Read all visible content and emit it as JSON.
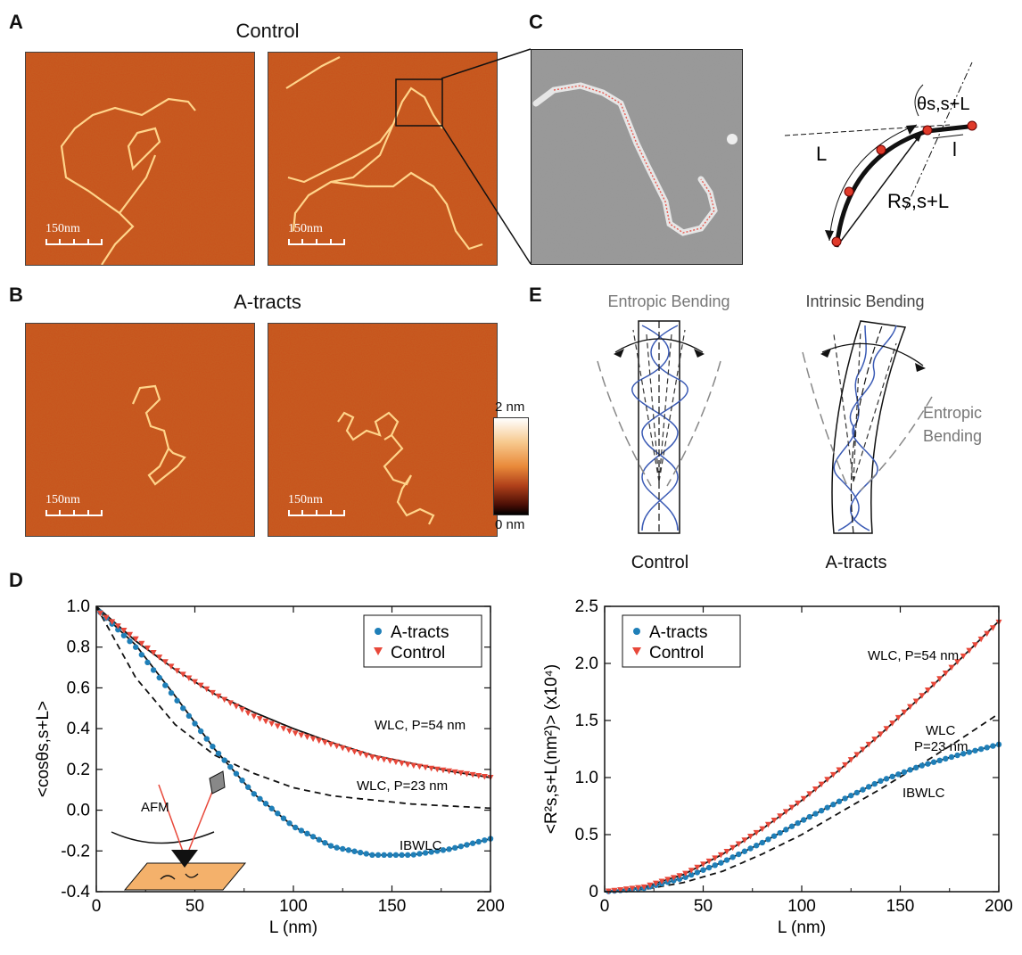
{
  "panels": {
    "a": "A",
    "b": "B",
    "c": "C",
    "d": "D",
    "e": "E"
  },
  "afm": {
    "control_title": "Control",
    "atracts_title": "A-tracts",
    "scale_label": "150nm",
    "colorbar_max": "2 nm",
    "colorbar_min": "0 nm"
  },
  "schematic": {
    "theta_label": "θs,s+L",
    "L_label": "L",
    "R_label": "Rs,s+L",
    "l_label": "l"
  },
  "bending": {
    "entropic_title": "Entropic Bending",
    "intrinsic_title": "Intrinsic Bending",
    "entropic_side_line1": "Entropic",
    "entropic_side_line2": "Bending",
    "control_caption": "Control",
    "atracts_caption": "A-tracts"
  },
  "colors": {
    "atracts": "#1f7fb8",
    "control": "#e8483a",
    "helix": "#3b5bb5",
    "afm_bg": "#c8501c",
    "afm_strand": "#ffd48a"
  },
  "chart_data": [
    {
      "type": "scatter",
      "xlabel": "L (nm)",
      "ylabel": "<cosθs,s+L>",
      "xlim": [
        0,
        200
      ],
      "ylim": [
        -0.4,
        1.0
      ],
      "xticks": [
        0,
        50,
        100,
        150,
        200
      ],
      "yticks": [
        -0.4,
        -0.2,
        0.0,
        0.2,
        0.4,
        0.6,
        0.8,
        1.0
      ],
      "ytick_labels": [
        "-0.4",
        "-0.2",
        "0.0",
        "0.2",
        "0.4",
        "0.6",
        "0.8",
        "1.0"
      ],
      "legend": {
        "position": "top-right",
        "entries": [
          "A-tracts",
          "Control"
        ]
      },
      "annotations": [
        "WLC, P=54 nm",
        "WLC, P=23 nm",
        "IBWLC",
        "AFM"
      ],
      "series": [
        {
          "name": "A-tracts",
          "marker": "circle",
          "x": [
            0,
            20,
            40,
            60,
            80,
            100,
            120,
            140,
            160,
            180,
            200
          ],
          "y": [
            0.99,
            0.8,
            0.55,
            0.3,
            0.08,
            -0.08,
            -0.18,
            -0.22,
            -0.22,
            -0.19,
            -0.14
          ]
        },
        {
          "name": "Control",
          "marker": "triangle-down",
          "x": [
            0,
            20,
            40,
            60,
            80,
            100,
            120,
            140,
            160,
            180,
            200
          ],
          "y": [
            0.98,
            0.84,
            0.69,
            0.57,
            0.46,
            0.38,
            0.32,
            0.26,
            0.22,
            0.19,
            0.16
          ]
        }
      ],
      "fits": [
        {
          "label": "WLC, P=54 nm",
          "style": "solid",
          "x": [
            0,
            20,
            40,
            60,
            80,
            100,
            120,
            140,
            160,
            180,
            200
          ],
          "y": [
            1.0,
            0.83,
            0.69,
            0.57,
            0.48,
            0.4,
            0.33,
            0.27,
            0.23,
            0.19,
            0.16
          ]
        },
        {
          "label": "WLC, P=23 nm",
          "style": "dashed",
          "x": [
            0,
            20,
            40,
            60,
            80,
            100,
            120,
            140,
            160,
            180,
            200
          ],
          "y": [
            1.0,
            0.65,
            0.42,
            0.27,
            0.18,
            0.11,
            0.07,
            0.05,
            0.03,
            0.02,
            0.01
          ]
        },
        {
          "label": "IBWLC",
          "style": "solid",
          "x": [
            0,
            20,
            40,
            60,
            80,
            100,
            120,
            140,
            160,
            180,
            200
          ],
          "y": [
            0.99,
            0.81,
            0.56,
            0.3,
            0.08,
            -0.08,
            -0.18,
            -0.22,
            -0.22,
            -0.19,
            -0.14
          ]
        }
      ]
    },
    {
      "type": "scatter",
      "xlabel": "L (nm)",
      "ylabel": "<R²s,s+L(nm²)> (x10⁴)",
      "xlim": [
        0,
        200
      ],
      "ylim": [
        0,
        2.5
      ],
      "xticks": [
        0,
        50,
        100,
        150,
        200
      ],
      "yticks": [
        0,
        0.5,
        1.0,
        1.5,
        2.0,
        2.5
      ],
      "ytick_labels": [
        "0",
        "0.5",
        "1.0",
        "1.5",
        "2.0",
        "2.5"
      ],
      "legend": {
        "position": "top-left",
        "entries": [
          "A-tracts",
          "Control"
        ]
      },
      "annotations": [
        "WLC, P=54 nm",
        "WLC",
        "P=23 nm",
        "IBWLC"
      ],
      "series": [
        {
          "name": "A-tracts",
          "marker": "circle",
          "x": [
            0,
            20,
            40,
            60,
            80,
            100,
            120,
            140,
            160,
            180,
            200
          ],
          "y": [
            0,
            0.03,
            0.12,
            0.26,
            0.43,
            0.62,
            0.8,
            0.97,
            1.1,
            1.2,
            1.29
          ]
        },
        {
          "name": "Control",
          "marker": "triangle-down",
          "x": [
            0,
            20,
            40,
            60,
            80,
            100,
            120,
            140,
            160,
            180,
            200
          ],
          "y": [
            0,
            0.04,
            0.15,
            0.33,
            0.55,
            0.8,
            1.08,
            1.38,
            1.7,
            2.03,
            2.36
          ]
        }
      ],
      "fits": [
        {
          "label": "WLC, P=54 nm",
          "style": "solid",
          "x": [
            0,
            20,
            40,
            60,
            80,
            100,
            120,
            140,
            160,
            180,
            200
          ],
          "y": [
            0,
            0.04,
            0.15,
            0.33,
            0.55,
            0.8,
            1.08,
            1.38,
            1.7,
            2.03,
            2.37
          ]
        },
        {
          "label": "WLC, P=23 nm",
          "style": "dashed",
          "x": [
            0,
            20,
            40,
            60,
            80,
            100,
            120,
            140,
            160,
            180,
            200
          ],
          "y": [
            0,
            0.02,
            0.08,
            0.18,
            0.33,
            0.5,
            0.7,
            0.9,
            1.11,
            1.33,
            1.56
          ]
        },
        {
          "label": "IBWLC",
          "style": "solid",
          "x": [
            0,
            20,
            40,
            60,
            80,
            100,
            120,
            140,
            160,
            180,
            200
          ],
          "y": [
            0,
            0.03,
            0.12,
            0.26,
            0.43,
            0.62,
            0.8,
            0.97,
            1.1,
            1.2,
            1.29
          ]
        }
      ]
    }
  ]
}
